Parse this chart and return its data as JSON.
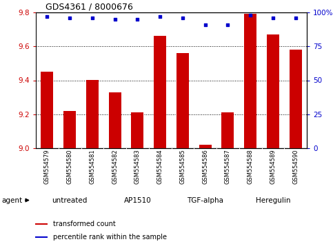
{
  "title": "GDS4361 / 8000676",
  "samples": [
    "GSM554579",
    "GSM554580",
    "GSM554581",
    "GSM554582",
    "GSM554583",
    "GSM554584",
    "GSM554585",
    "GSM554586",
    "GSM554587",
    "GSM554588",
    "GSM554589",
    "GSM554590"
  ],
  "bar_values": [
    9.45,
    9.22,
    9.4,
    9.33,
    9.21,
    9.66,
    9.56,
    9.02,
    9.21,
    9.79,
    9.67,
    9.58
  ],
  "percentile_values": [
    97,
    96,
    96,
    95,
    95,
    97,
    96,
    91,
    91,
    98,
    96,
    96
  ],
  "bar_color": "#cc0000",
  "dot_color": "#0000cc",
  "ylim_left": [
    9.0,
    9.8
  ],
  "ylim_right": [
    0,
    100
  ],
  "yticks_left": [
    9.0,
    9.2,
    9.4,
    9.6,
    9.8
  ],
  "yticks_right": [
    0,
    25,
    50,
    75,
    100
  ],
  "groups": [
    {
      "label": "untreated",
      "start": 0,
      "end": 3
    },
    {
      "label": "AP1510",
      "start": 3,
      "end": 6
    },
    {
      "label": "TGF-alpha",
      "start": 6,
      "end": 9
    },
    {
      "label": "Heregulin",
      "start": 9,
      "end": 12
    }
  ],
  "group_color": "#90ee90",
  "sample_bg_color": "#d3d3d3",
  "background_color": "#ffffff",
  "left_tick_color": "#cc0000",
  "right_tick_color": "#0000cc",
  "legend_bar_label": "transformed count",
  "legend_dot_label": "percentile rank within the sample",
  "agent_label": "agent"
}
